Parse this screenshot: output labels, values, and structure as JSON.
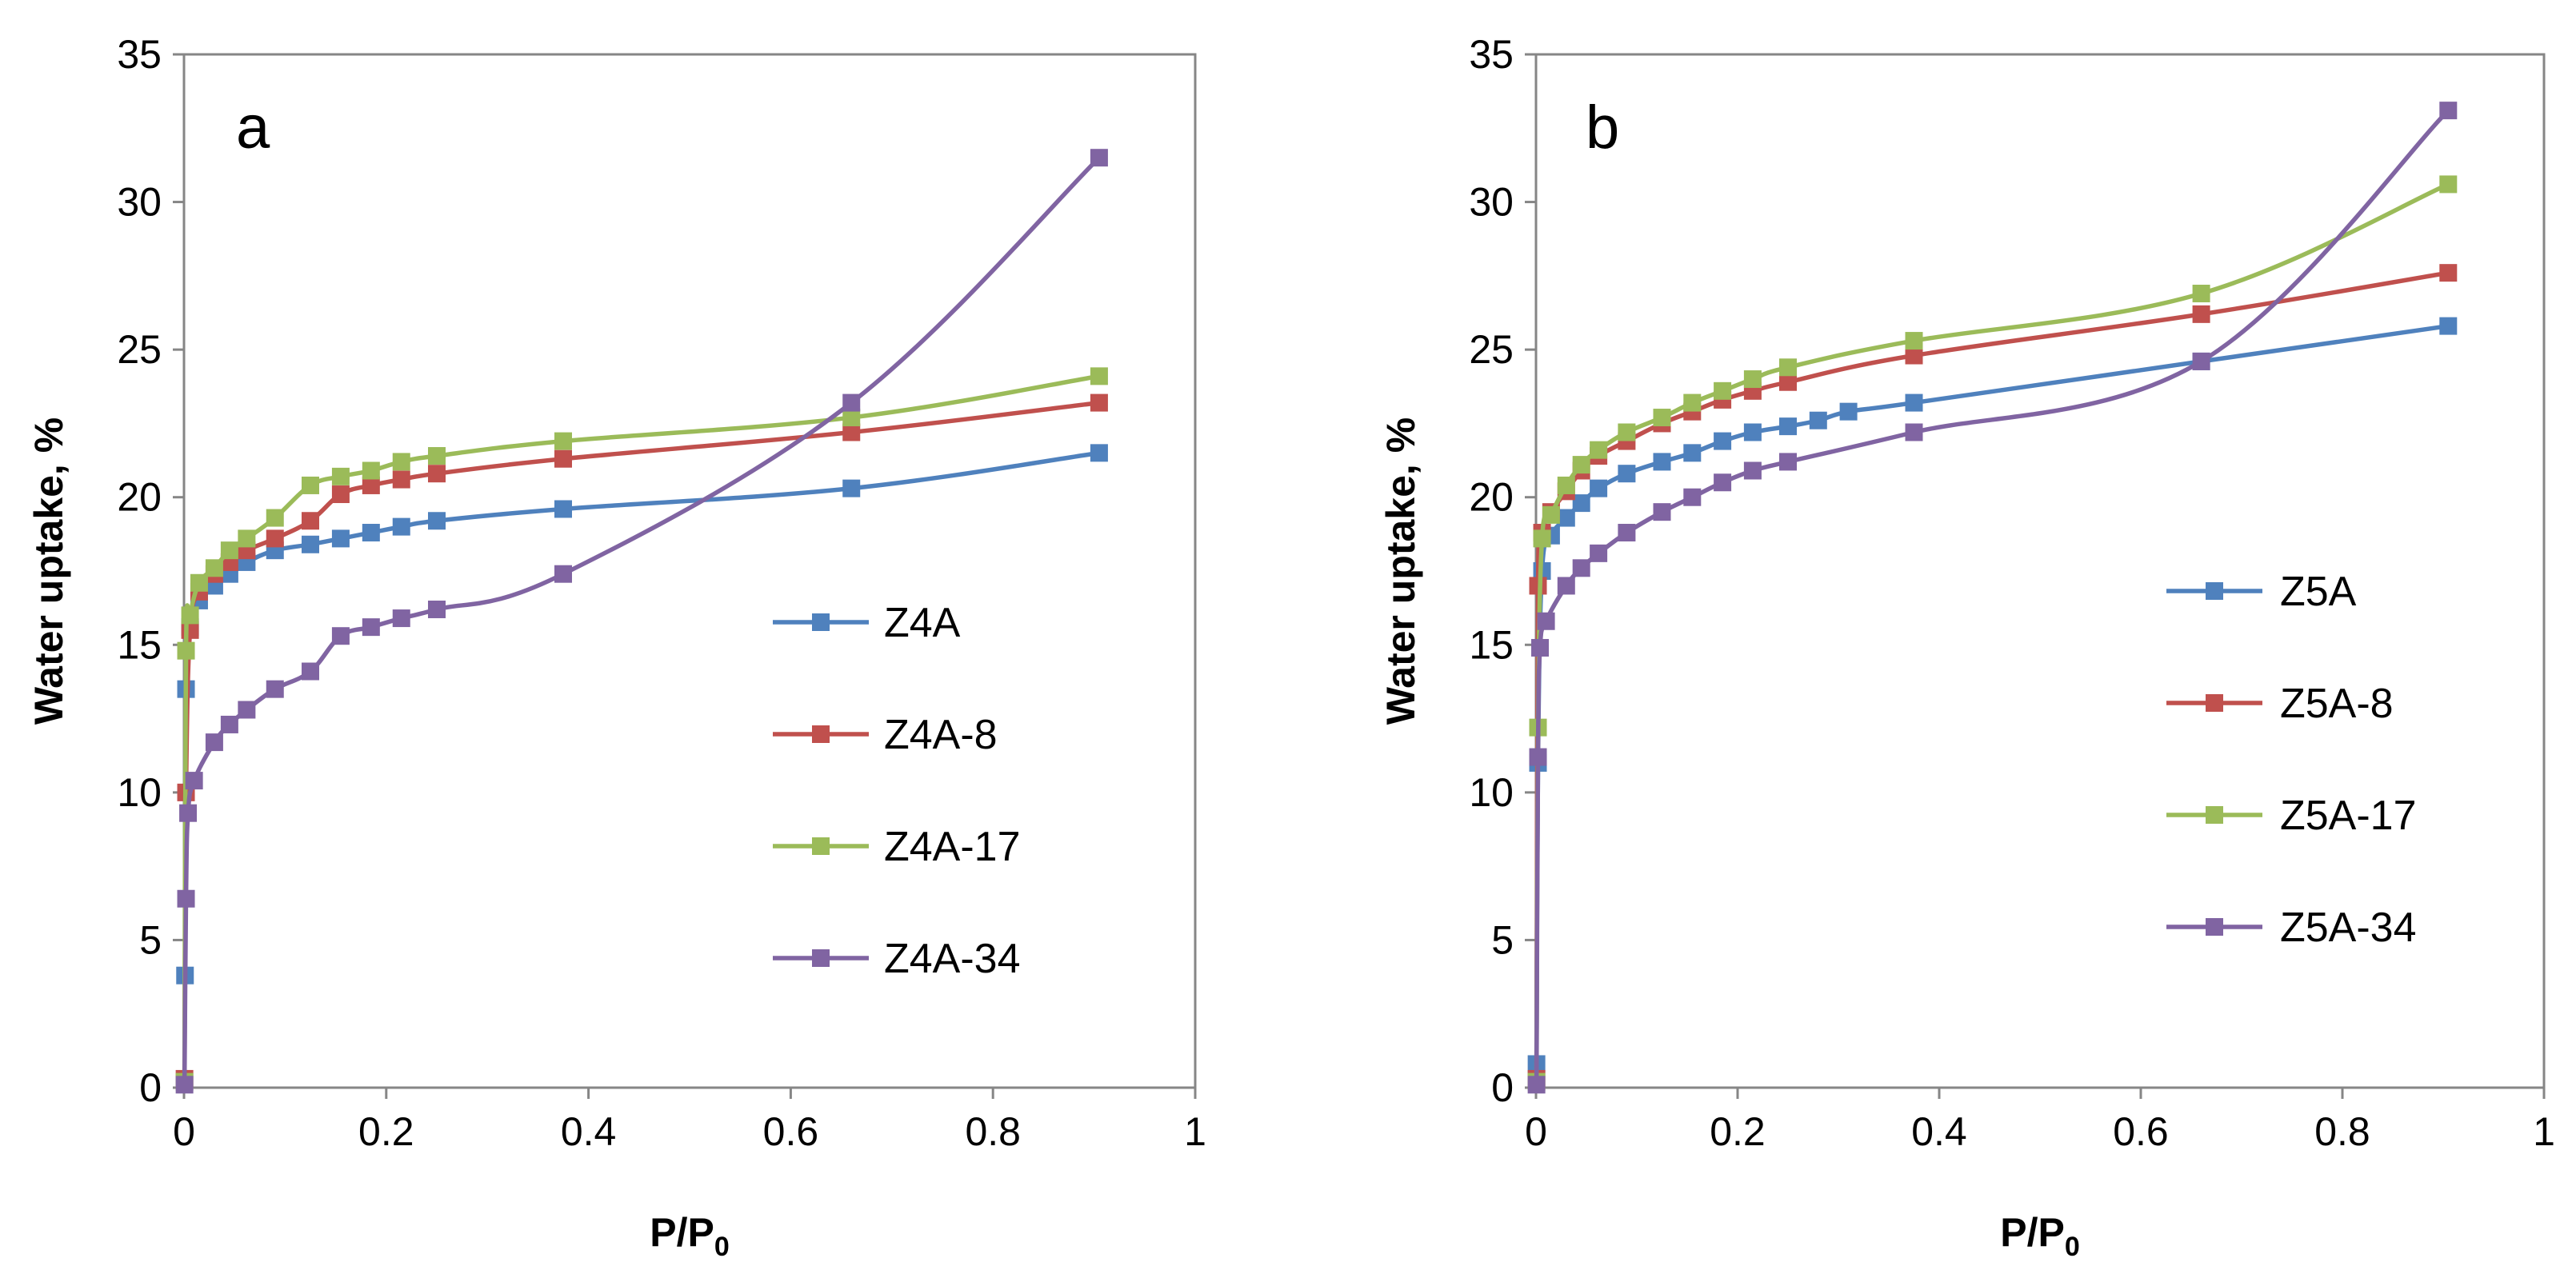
{
  "chart_data": [
    {
      "type": "line",
      "panel_label": "a",
      "xlabel": "P/P",
      "xlabel_sub": "0",
      "ylabel": "Water uptake,  %",
      "xlim": [
        0,
        1
      ],
      "ylim": [
        0,
        35
      ],
      "xticks": [
        "0",
        "0.2",
        "0.4",
        "0.6",
        "0.8",
        "1"
      ],
      "yticks": [
        "0",
        "5",
        "10",
        "15",
        "20",
        "25",
        "30",
        "35"
      ],
      "legend_position": "right-middle",
      "series": [
        {
          "name": "Z4A",
          "color": "#4F81BD",
          "x": [
            0.001,
            0.002,
            0.006,
            0.015,
            0.03,
            0.045,
            0.062,
            0.09,
            0.125,
            0.155,
            0.185,
            0.215,
            0.25,
            0.375,
            0.66,
            0.905
          ],
          "y": [
            3.8,
            13.5,
            15.6,
            16.5,
            17.0,
            17.4,
            17.8,
            18.2,
            18.4,
            18.6,
            18.8,
            19.0,
            19.2,
            19.6,
            20.3,
            21.5
          ]
        },
        {
          "name": "Z4A-8",
          "color": "#C0504D",
          "x": [
            0.0005,
            0.002,
            0.006,
            0.015,
            0.03,
            0.045,
            0.062,
            0.09,
            0.125,
            0.155,
            0.185,
            0.215,
            0.25,
            0.375,
            0.66,
            0.905
          ],
          "y": [
            0.3,
            10.0,
            15.5,
            16.8,
            17.4,
            17.8,
            18.2,
            18.6,
            19.2,
            20.1,
            20.4,
            20.6,
            20.8,
            21.3,
            22.2,
            23.2
          ]
        },
        {
          "name": "Z4A-17",
          "color": "#9BBB59",
          "x": [
            0.0005,
            0.002,
            0.006,
            0.015,
            0.03,
            0.045,
            0.062,
            0.09,
            0.125,
            0.155,
            0.185,
            0.215,
            0.25,
            0.375,
            0.66,
            0.905
          ],
          "y": [
            0.2,
            14.8,
            16.0,
            17.1,
            17.6,
            18.2,
            18.6,
            19.3,
            20.4,
            20.7,
            20.9,
            21.2,
            21.4,
            21.9,
            22.7,
            24.1
          ]
        },
        {
          "name": "Z4A-34",
          "color": "#8064A2",
          "x": [
            0.0005,
            0.002,
            0.004,
            0.01,
            0.03,
            0.045,
            0.062,
            0.09,
            0.125,
            0.155,
            0.185,
            0.215,
            0.25,
            0.375,
            0.66,
            0.905
          ],
          "y": [
            0.1,
            6.4,
            9.3,
            10.4,
            11.7,
            12.3,
            12.8,
            13.5,
            14.1,
            15.3,
            15.6,
            15.9,
            16.2,
            17.4,
            23.2,
            31.5
          ]
        }
      ]
    },
    {
      "type": "line",
      "panel_label": "b",
      "xlabel": "P/P",
      "xlabel_sub": "0",
      "ylabel": "Water uptake,  %",
      "xlim": [
        0,
        1
      ],
      "ylim": [
        0,
        35
      ],
      "xticks": [
        "0",
        "0.2",
        "0.4",
        "0.6",
        "0.8",
        "1"
      ],
      "yticks": [
        "0",
        "5",
        "10",
        "15",
        "20",
        "25",
        "30",
        "35"
      ],
      "legend_position": "right-middle",
      "series": [
        {
          "name": "Z5A",
          "color": "#4F81BD",
          "x": [
            0.0005,
            0.002,
            0.006,
            0.015,
            0.03,
            0.045,
            0.062,
            0.09,
            0.125,
            0.155,
            0.185,
            0.215,
            0.25,
            0.28,
            0.31,
            0.375,
            0.66,
            0.905
          ],
          "y": [
            0.8,
            11.0,
            17.5,
            18.7,
            19.3,
            19.8,
            20.3,
            20.8,
            21.2,
            21.5,
            21.9,
            22.2,
            22.4,
            22.6,
            22.9,
            23.2,
            24.6,
            25.8
          ]
        },
        {
          "name": "Z5A-8",
          "color": "#C0504D",
          "x": [
            0.0005,
            0.002,
            0.006,
            0.015,
            0.03,
            0.045,
            0.062,
            0.09,
            0.125,
            0.155,
            0.185,
            0.215,
            0.25,
            0.375,
            0.66,
            0.905
          ],
          "y": [
            0.3,
            17.0,
            18.8,
            19.5,
            20.2,
            20.9,
            21.4,
            21.9,
            22.5,
            22.9,
            23.3,
            23.6,
            23.9,
            24.8,
            26.2,
            27.6
          ]
        },
        {
          "name": "Z5A-17",
          "color": "#9BBB59",
          "x": [
            0.0005,
            0.002,
            0.006,
            0.015,
            0.03,
            0.045,
            0.062,
            0.09,
            0.125,
            0.155,
            0.185,
            0.215,
            0.25,
            0.375,
            0.66,
            0.905
          ],
          "y": [
            0.2,
            12.2,
            18.6,
            19.4,
            20.4,
            21.1,
            21.6,
            22.2,
            22.7,
            23.2,
            23.6,
            24.0,
            24.4,
            25.3,
            26.9,
            30.6
          ]
        },
        {
          "name": "Z5A-34",
          "color": "#8064A2",
          "x": [
            0.0005,
            0.002,
            0.004,
            0.01,
            0.03,
            0.045,
            0.062,
            0.09,
            0.125,
            0.155,
            0.185,
            0.215,
            0.25,
            0.375,
            0.66,
            0.905
          ],
          "y": [
            0.1,
            11.2,
            14.9,
            15.8,
            17.0,
            17.6,
            18.1,
            18.8,
            19.5,
            20.0,
            20.5,
            20.9,
            21.2,
            22.2,
            24.6,
            33.1
          ]
        }
      ]
    }
  ]
}
